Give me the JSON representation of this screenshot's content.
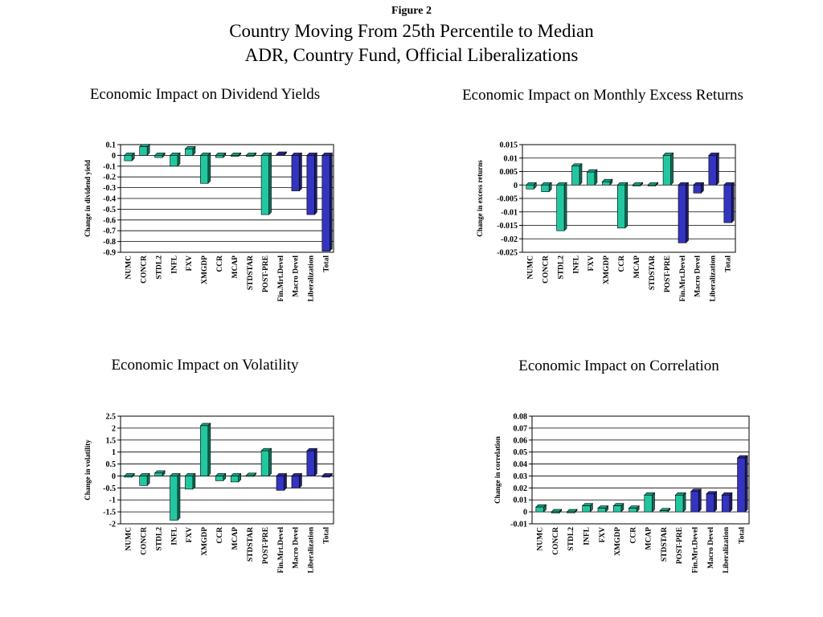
{
  "figure_label": "Figure 2",
  "title_line1": "Country Moving From 25th Percentile to Median",
  "title_line2": "ADR, Country Fund, Official Liberalizations",
  "colors": {
    "green": "#22c7a0",
    "blue": "#3434c0",
    "grid": "#000000"
  },
  "chart_data": [
    {
      "type": "bar",
      "title": "Economic Impact on Dividend Yields",
      "xlabel": "",
      "ylabel": "Change in dividend yield",
      "ylim": [
        -0.9,
        0.1
      ],
      "tick_step": 0.1,
      "tick_labels": [
        "0.1",
        "0",
        "-0.1",
        "-0.2",
        "-0.3",
        "-0.4",
        "-0.5",
        "-0.6",
        "-0.7",
        "-0.8",
        "-0.9"
      ],
      "categories": [
        "NUMC",
        "CONCR",
        "STDL2",
        "INFL",
        "FXV",
        "XMGDP",
        "CCR",
        "MCAP",
        "STDSTAR",
        "POST-PRE",
        "Fin.Mrt.Devel",
        "Macro Devel",
        "Liberalization",
        "Total"
      ],
      "values": [
        -0.05,
        0.08,
        -0.02,
        -0.1,
        0.06,
        -0.26,
        -0.02,
        0,
        0,
        -0.55,
        0.01,
        -0.33,
        -0.55,
        -0.89
      ],
      "bar_colors": [
        "green",
        "green",
        "green",
        "green",
        "green",
        "green",
        "green",
        "green",
        "green",
        "green",
        "blue",
        "blue",
        "blue",
        "blue"
      ],
      "grid": true
    },
    {
      "type": "bar",
      "title": "Economic Impact on Monthly Excess Returns",
      "xlabel": "",
      "ylabel": "Change in excess returns",
      "ylim": [
        -0.025,
        0.015
      ],
      "tick_step": 0.005,
      "tick_labels": [
        "0.015",
        "0.01",
        "0.005",
        "0",
        "-0.005",
        "-0.01",
        "-0.015",
        "-0.02",
        "-0.025"
      ],
      "categories": [
        "NUMC",
        "CONCR",
        "STDL2",
        "INFL",
        "FXV",
        "XMGDP",
        "CCR",
        "MCAP",
        "STDSTAR",
        "POST-PRE",
        "Fin.Mrt.Devel",
        "Macro Devel",
        "Liberalization",
        "Total"
      ],
      "values": [
        -0.0015,
        -0.0025,
        -0.017,
        0.007,
        0.0048,
        0.0012,
        -0.016,
        0,
        0,
        0.011,
        -0.0215,
        -0.003,
        0.011,
        -0.014
      ],
      "bar_colors": [
        "green",
        "green",
        "green",
        "green",
        "green",
        "green",
        "green",
        "green",
        "green",
        "green",
        "blue",
        "blue",
        "blue",
        "blue"
      ],
      "grid": true
    },
    {
      "type": "bar",
      "title": "Economic Impact on Volatility",
      "xlabel": "",
      "ylabel": "Change in volatility",
      "ylim": [
        -2,
        2.5
      ],
      "tick_step": 0.5,
      "tick_labels": [
        "2.5",
        "2",
        "1.5",
        "1",
        "0.5",
        "0",
        "-0.5",
        "-1",
        "-1.5",
        "-2"
      ],
      "categories": [
        "NUMC",
        "CONCR",
        "STDL2",
        "INFL",
        "FXV",
        "XMGDP",
        "CCR",
        "MCAP",
        "STDSTAR",
        "POST-PRE",
        "Fin.Mrt.Devel",
        "Macro Devel",
        "Liberalization",
        "Total"
      ],
      "values": [
        -0.05,
        -0.4,
        0.12,
        -1.85,
        -0.55,
        2.1,
        -0.2,
        -0.25,
        0.02,
        1.05,
        -0.6,
        -0.5,
        1.05,
        -0.05
      ],
      "bar_colors": [
        "green",
        "green",
        "green",
        "green",
        "green",
        "green",
        "green",
        "green",
        "green",
        "green",
        "blue",
        "blue",
        "blue",
        "blue"
      ],
      "grid": true
    },
    {
      "type": "bar",
      "title": "Economic Impact on Correlation",
      "xlabel": "",
      "ylabel": "Change in correlation",
      "ylim": [
        -0.01,
        0.08
      ],
      "tick_step": 0.01,
      "tick_labels": [
        "0.08",
        "0.07",
        "0.06",
        "0.05",
        "0.04",
        "0.03",
        "0.02",
        "0.01",
        "0",
        "-0.01"
      ],
      "categories": [
        "NUMC",
        "CONCR",
        "STDL2",
        "INFL",
        "FXV",
        "XMGDP",
        "CCR",
        "MCAP",
        "STDSTAR",
        "POST-PRE",
        "Fin.Mrt.Devel",
        "Macro Devel",
        "Liberalization",
        "Total"
      ],
      "values": [
        0.004,
        -0.001,
        0,
        0.005,
        0.003,
        0.005,
        0.003,
        0.014,
        0.001,
        0.014,
        0.017,
        0.015,
        0.014,
        0.045
      ],
      "bar_colors": [
        "green",
        "green",
        "green",
        "green",
        "green",
        "green",
        "green",
        "green",
        "green",
        "green",
        "blue",
        "blue",
        "blue",
        "blue"
      ],
      "grid": true
    }
  ]
}
